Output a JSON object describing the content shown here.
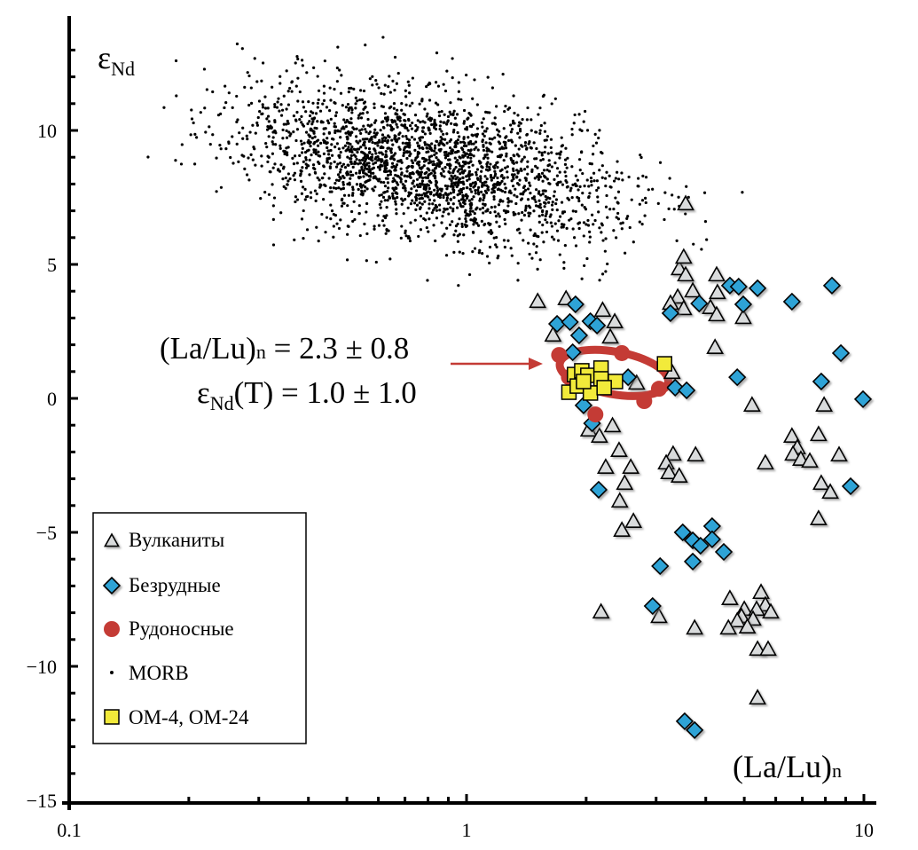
{
  "chart_data": {
    "type": "scatter",
    "title": "",
    "xlabel": "(La/Lu)",
    "xlabel_sub": "n",
    "ylabel": "ε",
    "ylabel_sub": "Nd",
    "xscale": "log",
    "xlim": [
      0.1,
      10
    ],
    "ylim": [
      -15,
      14
    ],
    "grid": false,
    "x_ticks": [
      {
        "v": 0.1,
        "label": "0.1"
      },
      {
        "v": 1,
        "label": "1"
      },
      {
        "v": 10,
        "label": "10"
      }
    ],
    "y_ticks": [
      {
        "v": 10,
        "label": "10"
      },
      {
        "v": 5,
        "label": "5"
      },
      {
        "v": 0,
        "label": "0"
      },
      {
        "v": -5,
        "label": "−5"
      },
      {
        "v": -10,
        "label": "−10"
      },
      {
        "v": -15,
        "label": "−15"
      }
    ],
    "legend_position": "bottom-left",
    "legend": [
      {
        "key": "volcanics",
        "label": "Вулканиты",
        "marker": "triangle"
      },
      {
        "key": "barren",
        "label": "Безрудные",
        "marker": "diamond"
      },
      {
        "key": "ore",
        "label": "Рудоносные",
        "marker": "circle"
      },
      {
        "key": "morb",
        "label": "MORB",
        "marker": "dot"
      },
      {
        "key": "om",
        "label": "OM-4, OM-24",
        "marker": "square"
      }
    ],
    "colors": {
      "volcanics": "#d9dbdc",
      "barren": "#2ea3d6",
      "ore": "#c43b35",
      "morb": "#000000",
      "om": "#f2ea3a",
      "arrow": "#c43b35"
    },
    "annotations": [
      {
        "text": "(La/Lu)",
        "sub": "n",
        "rest": " = 2.3 ± 0.8"
      },
      {
        "text": "ε",
        "sub": "Nd",
        "rest": "(T) = 1.0 ± 1.0"
      }
    ],
    "ore_field": {
      "center": [
        2.3,
        1.0
      ],
      "la_lu_sd": 0.8,
      "eps_sd": 1.0
    },
    "series": {
      "volcanics": [
        [
          1.51,
          3.61
        ],
        [
          1.78,
          3.71
        ],
        [
          2.2,
          3.28
        ],
        [
          2.36,
          2.85
        ],
        [
          1.65,
          2.35
        ],
        [
          2.3,
          2.28
        ],
        [
          4.26,
          4.6
        ],
        [
          3.43,
          4.83
        ],
        [
          3.56,
          4.6
        ],
        [
          4.28,
          3.94
        ],
        [
          3.4,
          3.77
        ],
        [
          3.71,
          4.0
        ],
        [
          3.52,
          3.34
        ],
        [
          4.11,
          3.38
        ],
        [
          4.26,
          3.11
        ],
        [
          4.97,
          3.01
        ],
        [
          3.26,
          3.54
        ],
        [
          4.22,
          1.89
        ],
        [
          3.29,
          0.96
        ],
        [
          2.68,
          0.56
        ],
        [
          5.23,
          -0.26
        ],
        [
          7.94,
          -0.26
        ],
        [
          2.33,
          -1.03
        ],
        [
          2.03,
          -1.19
        ],
        [
          2.16,
          -1.42
        ],
        [
          6.59,
          -1.42
        ],
        [
          7.69,
          -1.36
        ],
        [
          6.8,
          -1.85
        ],
        [
          6.63,
          -2.09
        ],
        [
          6.94,
          -2.28
        ],
        [
          7.31,
          -2.35
        ],
        [
          8.66,
          -2.12
        ],
        [
          2.42,
          -1.95
        ],
        [
          2.24,
          -2.58
        ],
        [
          2.59,
          -2.58
        ],
        [
          3.31,
          -2.09
        ],
        [
          3.77,
          -2.12
        ],
        [
          3.18,
          -2.42
        ],
        [
          3.23,
          -2.78
        ],
        [
          3.43,
          -2.91
        ],
        [
          5.65,
          -2.42
        ],
        [
          7.81,
          -3.18
        ],
        [
          8.23,
          -3.51
        ],
        [
          7.69,
          -4.5
        ],
        [
          2.63,
          -4.6
        ],
        [
          2.46,
          -4.93
        ],
        [
          2.43,
          -3.84
        ],
        [
          2.5,
          -3.18
        ],
        [
          4.6,
          -7.48
        ],
        [
          5.51,
          -7.25
        ],
        [
          5.65,
          -7.72
        ],
        [
          5.0,
          -7.88
        ],
        [
          5.37,
          -7.88
        ],
        [
          5.83,
          -7.98
        ],
        [
          4.92,
          -8.15
        ],
        [
          4.8,
          -8.31
        ],
        [
          5.26,
          -8.25
        ],
        [
          5.09,
          -8.54
        ],
        [
          4.56,
          -8.58
        ],
        [
          3.75,
          -8.58
        ],
        [
          2.18,
          -7.98
        ],
        [
          3.05,
          -8.15
        ],
        [
          5.4,
          -9.37
        ],
        [
          5.74,
          -9.37
        ],
        [
          5.4,
          -11.19
        ],
        [
          3.56,
          7.25
        ],
        [
          3.52,
          5.26
        ]
      ],
      "barren": [
        [
          1.88,
          3.51
        ],
        [
          1.69,
          2.78
        ],
        [
          1.82,
          2.85
        ],
        [
          2.05,
          2.88
        ],
        [
          2.13,
          2.72
        ],
        [
          1.92,
          2.35
        ],
        [
          1.85,
          1.72
        ],
        [
          2.55,
          0.79
        ],
        [
          3.35,
          0.4
        ],
        [
          3.58,
          0.3
        ],
        [
          1.97,
          -0.26
        ],
        [
          2.07,
          -0.93
        ],
        [
          3.26,
          3.18
        ],
        [
          3.85,
          3.54
        ],
        [
          4.6,
          4.21
        ],
        [
          4.84,
          4.17
        ],
        [
          5.4,
          4.11
        ],
        [
          4.97,
          3.51
        ],
        [
          6.59,
          3.61
        ],
        [
          8.31,
          4.21
        ],
        [
          8.75,
          1.69
        ],
        [
          4.8,
          0.79
        ],
        [
          7.81,
          0.63
        ],
        [
          9.95,
          -0.03
        ],
        [
          2.15,
          -3.41
        ],
        [
          9.26,
          -3.28
        ],
        [
          3.5,
          -5.0
        ],
        [
          3.71,
          -5.3
        ],
        [
          3.88,
          -5.5
        ],
        [
          4.15,
          -4.77
        ],
        [
          4.15,
          -5.26
        ],
        [
          4.44,
          -5.73
        ],
        [
          3.71,
          -6.09
        ],
        [
          3.07,
          -6.26
        ],
        [
          2.94,
          -7.75
        ],
        [
          3.54,
          -12.05
        ],
        [
          3.75,
          -12.38
        ]
      ],
      "ore": [
        [
          1.71,
          1.62
        ],
        [
          2.46,
          1.69
        ],
        [
          3.05,
          0.36
        ],
        [
          2.8,
          -0.1
        ],
        [
          2.11,
          -0.6
        ],
        [
          1.81,
          0.79
        ]
      ],
      "om": [
        [
          3.15,
          1.29
        ],
        [
          1.87,
          0.89
        ],
        [
          1.95,
          1.03
        ],
        [
          2.02,
          0.86
        ],
        [
          2.18,
          1.13
        ],
        [
          2.18,
          0.73
        ],
        [
          2.37,
          0.63
        ],
        [
          1.81,
          0.23
        ],
        [
          1.9,
          0.46
        ],
        [
          2.05,
          0.2
        ],
        [
          2.22,
          0.4
        ],
        [
          1.97,
          0.63
        ]
      ],
      "morb_cloud": {
        "count": 2400,
        "log10x_mean": -0.1,
        "log10x_sd": 0.24,
        "y_at_mean": 8.7,
        "y_slope_per_decade": -2.6,
        "y_sd": 1.35,
        "seed": 7
      }
    }
  }
}
